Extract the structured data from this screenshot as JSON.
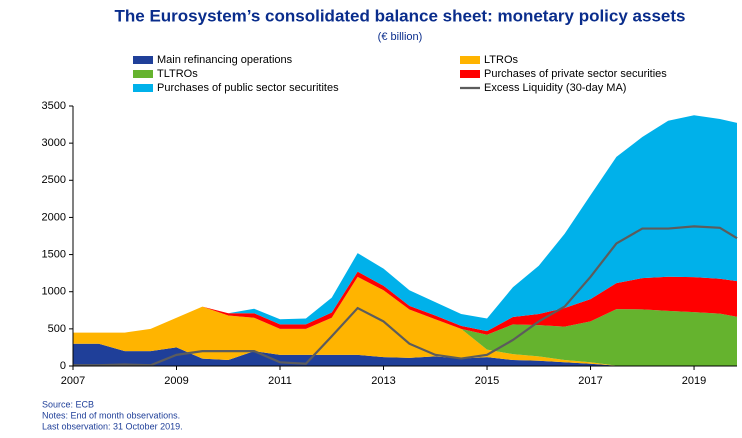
{
  "chart_data": {
    "type": "stacked-area",
    "title": "The Eurosystem’s consolidated balance sheet: monetary policy assets",
    "subtitle": "(€ billion)",
    "x": [
      2007,
      2007.5,
      2008,
      2008.5,
      2009,
      2009.5,
      2010,
      2010.5,
      2011,
      2011.5,
      2012,
      2012.5,
      2013,
      2013.5,
      2014,
      2014.5,
      2015,
      2015.5,
      2016,
      2016.5,
      2017,
      2017.5,
      2018,
      2018.5,
      2019,
      2019.5,
      2019.83
    ],
    "series": [
      {
        "name": "Main refinancing operations",
        "color": "#1f3f99",
        "values": [
          300,
          300,
          200,
          200,
          250,
          100,
          80,
          200,
          150,
          150,
          150,
          150,
          120,
          110,
          130,
          100,
          120,
          80,
          70,
          50,
          30,
          5,
          3,
          2,
          6,
          5,
          3
        ]
      },
      {
        "name": "LTROs",
        "color": "#ffb400",
        "values": [
          150,
          150,
          250,
          300,
          400,
          700,
          600,
          450,
          350,
          350,
          500,
          1050,
          900,
          650,
          500,
          400,
          100,
          80,
          60,
          30,
          20,
          0,
          0,
          0,
          0,
          0,
          0
        ]
      },
      {
        "name": "TLTROs",
        "color": "#65b32e",
        "values": [
          0,
          0,
          0,
          0,
          0,
          0,
          0,
          0,
          0,
          0,
          0,
          0,
          0,
          0,
          0,
          0,
          200,
          400,
          420,
          450,
          550,
          760,
          760,
          740,
          720,
          700,
          660
        ]
      },
      {
        "name": "Purchases of private sector securities",
        "color": "#ff0000",
        "values": [
          0,
          0,
          0,
          0,
          0,
          0,
          30,
          60,
          60,
          60,
          70,
          70,
          60,
          50,
          50,
          40,
          50,
          100,
          150,
          250,
          300,
          350,
          420,
          460,
          470,
          470,
          480
        ]
      },
      {
        "name": "Purchases of public sector securitites",
        "color": "#00b1ea",
        "values": [
          0,
          0,
          0,
          0,
          0,
          0,
          0,
          60,
          70,
          80,
          200,
          250,
          230,
          210,
          180,
          160,
          170,
          400,
          650,
          1000,
          1400,
          1700,
          1900,
          2100,
          2180,
          2150,
          2130
        ]
      }
    ],
    "line": {
      "name": "Excess Liquidity (30-day MA)",
      "color": "#5c5c5c",
      "values": [
        10,
        10,
        20,
        10,
        150,
        200,
        200,
        200,
        50,
        30,
        400,
        780,
        600,
        300,
        150,
        100,
        150,
        350,
        600,
        800,
        1200,
        1650,
        1850,
        1850,
        1880,
        1860,
        1720
      ]
    },
    "xlim": [
      2007,
      2019.83
    ],
    "xticks": [
      2007,
      2009,
      2011,
      2013,
      2015,
      2017,
      2019
    ],
    "ylim": [
      0,
      3500
    ],
    "yticks": [
      0,
      500,
      1000,
      1500,
      2000,
      2500,
      3000,
      3500
    ],
    "grid": false,
    "footnotes": [
      "Source: ECB",
      "Notes: End of month observations.",
      "Last observation: 31 October 2019."
    ]
  }
}
